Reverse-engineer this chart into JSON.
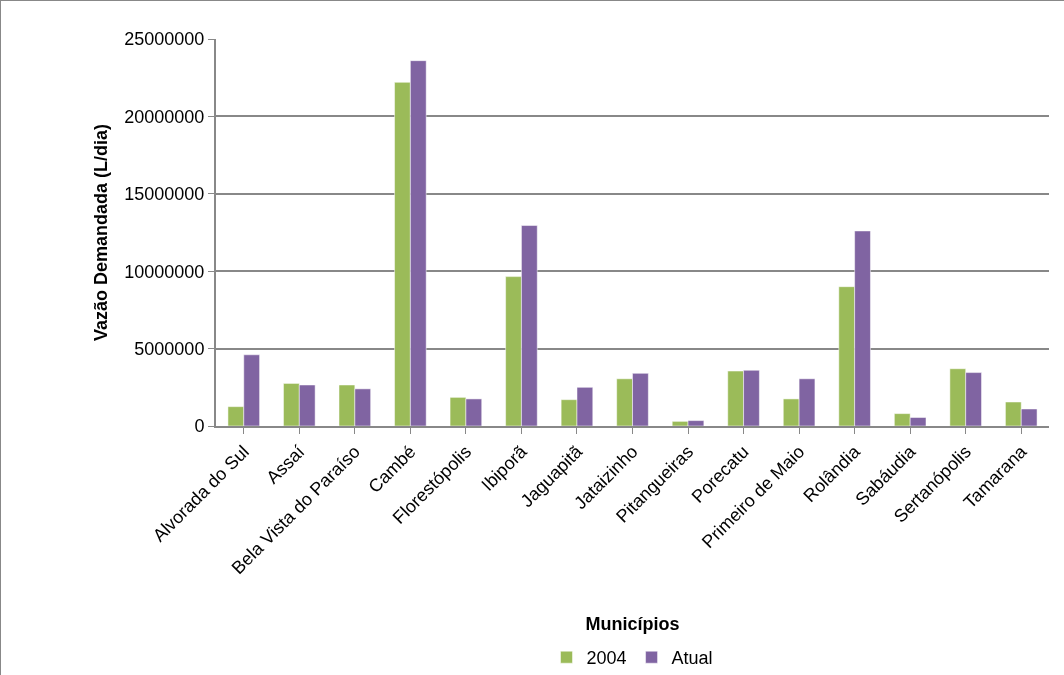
{
  "chart_data": {
    "type": "bar",
    "xlabel": "Municípios",
    "ylabel": "Vazão Demandada (L/dia)",
    "categories": [
      "Alvorada do Sul",
      "Assaí",
      "Bela Vista do Paraíso",
      "Cambé",
      "Florestópolis",
      "Ibiporã",
      "Jaguapitã",
      "Jataizinho",
      "Pitangueiras",
      "Porecatu",
      "Primeiro de Maio",
      "Rolândia",
      "Sabáudia",
      "Sertanópolis",
      "Tamarana"
    ],
    "series": [
      {
        "name": "2004",
        "color": "#9bbb59",
        "values": [
          1250000,
          2750000,
          2650000,
          22200000,
          1850000,
          9650000,
          1700000,
          3050000,
          300000,
          3550000,
          1750000,
          9000000,
          800000,
          3700000,
          1550000
        ]
      },
      {
        "name": "Atual",
        "color": "#8064a2",
        "values": [
          4600000,
          2650000,
          2400000,
          23600000,
          1750000,
          12950000,
          2500000,
          3400000,
          350000,
          3600000,
          3050000,
          12600000,
          550000,
          3450000,
          1100000
        ]
      }
    ],
    "ylim": [
      0,
      25000000
    ],
    "yticks": [
      0,
      5000000,
      10000000,
      15000000,
      20000000,
      25000000
    ],
    "grid": "y",
    "legend": "bottom"
  }
}
